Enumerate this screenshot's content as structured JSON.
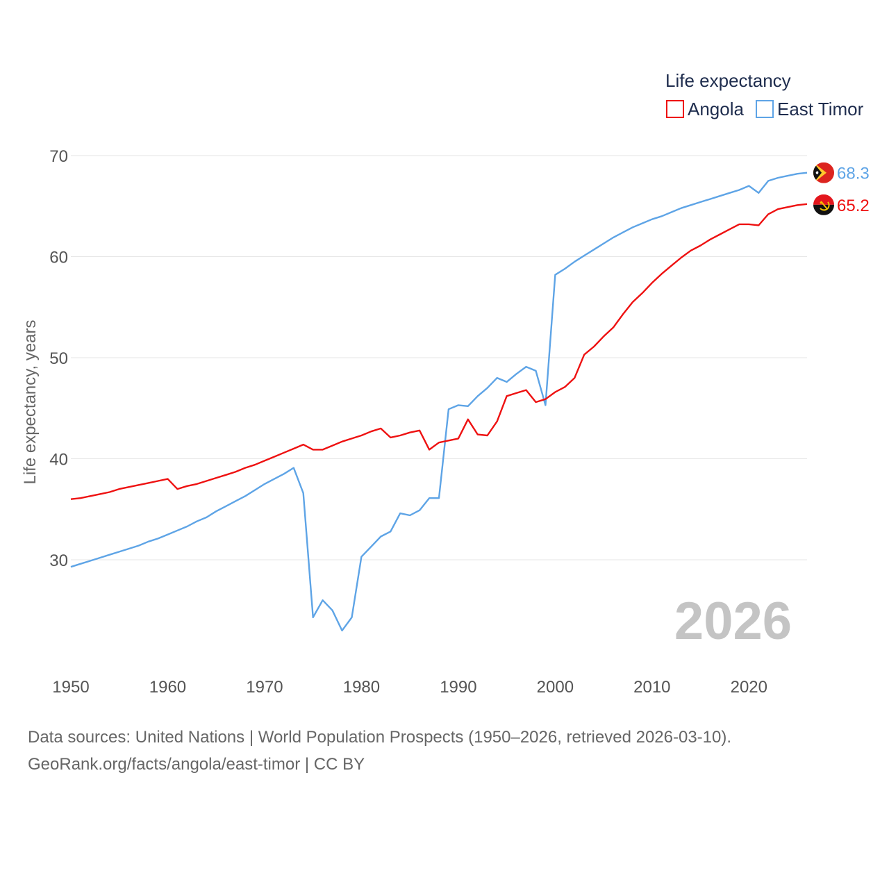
{
  "chart_data": {
    "type": "line",
    "legend_title": "Life expectancy",
    "ylabel": "Life expectancy, years",
    "xlabel": "",
    "ylim": [
      21,
      71
    ],
    "xlim": [
      1950,
      2026
    ],
    "yticks": [
      30,
      40,
      50,
      60,
      70
    ],
    "xticks": [
      1950,
      1960,
      1970,
      1980,
      1990,
      2000,
      2010,
      2020
    ],
    "year_label": "2026",
    "legend_position": "top-right",
    "grid": true,
    "series": [
      {
        "name": "Angola",
        "color": "#ee1111",
        "end_label": "65.2",
        "flag": "angola-flag",
        "x": [
          1950,
          1951,
          1952,
          1953,
          1954,
          1955,
          1956,
          1957,
          1958,
          1959,
          1960,
          1961,
          1962,
          1963,
          1964,
          1965,
          1966,
          1967,
          1968,
          1969,
          1970,
          1971,
          1972,
          1973,
          1974,
          1975,
          1976,
          1977,
          1978,
          1979,
          1980,
          1981,
          1982,
          1983,
          1984,
          1985,
          1986,
          1987,
          1988,
          1989,
          1990,
          1991,
          1992,
          1993,
          1994,
          1995,
          1996,
          1997,
          1998,
          1999,
          2000,
          2001,
          2002,
          2003,
          2004,
          2005,
          2006,
          2007,
          2008,
          2009,
          2010,
          2011,
          2012,
          2013,
          2014,
          2015,
          2016,
          2017,
          2018,
          2019,
          2020,
          2021,
          2022,
          2023,
          2024,
          2025,
          2026
        ],
        "values": [
          36.0,
          36.1,
          36.3,
          36.5,
          36.7,
          37.0,
          37.2,
          37.4,
          37.6,
          37.8,
          38.0,
          37.0,
          37.3,
          37.5,
          37.8,
          38.1,
          38.4,
          38.7,
          39.1,
          39.4,
          39.8,
          40.2,
          40.6,
          41.0,
          41.4,
          40.9,
          40.9,
          41.3,
          41.7,
          42.0,
          42.3,
          42.7,
          43.0,
          42.1,
          42.3,
          42.6,
          42.8,
          40.9,
          41.6,
          41.8,
          42.0,
          43.9,
          42.4,
          42.3,
          43.7,
          46.2,
          46.5,
          46.8,
          45.6,
          45.9,
          46.6,
          47.1,
          48.0,
          50.3,
          51.1,
          52.1,
          53.0,
          54.3,
          55.5,
          56.4,
          57.4,
          58.3,
          59.1,
          59.9,
          60.6,
          61.1,
          61.7,
          62.2,
          62.7,
          63.2,
          63.2,
          63.1,
          64.2,
          64.7,
          64.9,
          65.1,
          65.2
        ]
      },
      {
        "name": "East Timor",
        "color": "#5ea4e6",
        "end_label": "68.3",
        "flag": "east-timor-flag",
        "x": [
          1950,
          1951,
          1952,
          1953,
          1954,
          1955,
          1956,
          1957,
          1958,
          1959,
          1960,
          1961,
          1962,
          1963,
          1964,
          1965,
          1966,
          1967,
          1968,
          1969,
          1970,
          1971,
          1972,
          1973,
          1974,
          1975,
          1976,
          1977,
          1978,
          1979,
          1980,
          1981,
          1982,
          1983,
          1984,
          1985,
          1986,
          1987,
          1988,
          1989,
          1990,
          1991,
          1992,
          1993,
          1994,
          1995,
          1996,
          1997,
          1998,
          1999,
          2000,
          2001,
          2002,
          2003,
          2004,
          2005,
          2006,
          2007,
          2008,
          2009,
          2010,
          2011,
          2012,
          2013,
          2014,
          2015,
          2016,
          2017,
          2018,
          2019,
          2020,
          2021,
          2022,
          2023,
          2024,
          2025,
          2026
        ],
        "values": [
          29.3,
          29.6,
          29.9,
          30.2,
          30.5,
          30.8,
          31.1,
          31.4,
          31.8,
          32.1,
          32.5,
          32.9,
          33.3,
          33.8,
          34.2,
          34.8,
          35.3,
          35.8,
          36.3,
          36.9,
          37.5,
          38.0,
          38.5,
          39.1,
          36.6,
          24.3,
          26.0,
          25.0,
          23.0,
          24.3,
          30.3,
          31.3,
          32.3,
          32.8,
          34.6,
          34.4,
          34.9,
          36.1,
          36.1,
          44.9,
          45.3,
          45.2,
          46.2,
          47.0,
          48.0,
          47.6,
          48.4,
          49.1,
          48.7,
          45.3,
          58.2,
          58.8,
          59.5,
          60.1,
          60.7,
          61.3,
          61.9,
          62.4,
          62.9,
          63.3,
          63.7,
          64.0,
          64.4,
          64.8,
          65.1,
          65.4,
          65.7,
          66.0,
          66.3,
          66.6,
          67.0,
          66.3,
          67.5,
          67.8,
          68.0,
          68.2,
          68.3
        ]
      }
    ]
  },
  "footer": {
    "line1": "Data sources: United Nations | World Population Prospects (1950–2026, retrieved 2026-03-10).",
    "line2": "GeoRank.org/facts/angola/east-timor | CC BY"
  }
}
